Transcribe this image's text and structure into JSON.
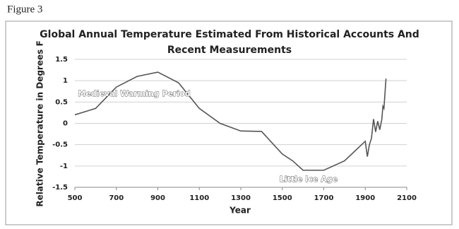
{
  "figure_label": "Figure 3",
  "chart_data": {
    "type": "line",
    "title": "Global Annual Temperature Estimated From Historical Accounts And Recent Measurements",
    "x_label": "Year",
    "y_label": "Relative Temperature in Degrees F",
    "annotations": [
      "Medieval Warming Period",
      "Little Ice Age"
    ],
    "x": [
      500,
      600,
      700,
      800,
      900,
      1000,
      1100,
      1200,
      1300,
      1400,
      1500,
      1550,
      1600,
      1700,
      1800,
      1900,
      1910,
      1920,
      1930,
      1940,
      1950,
      1960,
      1970,
      1980,
      1985,
      1990,
      2000
    ],
    "values": [
      0.2,
      0.35,
      0.85,
      1.1,
      1.2,
      0.95,
      0.35,
      0.0,
      -0.18,
      -0.19,
      -0.72,
      -0.88,
      -1.1,
      -1.1,
      -0.88,
      -0.42,
      -0.78,
      -0.5,
      -0.35,
      0.1,
      -0.2,
      0.05,
      -0.15,
      0.1,
      0.4,
      0.35,
      1.05
    ],
    "color": "#555555",
    "xlim": [
      500,
      2100
    ],
    "xticks": [
      500,
      700,
      900,
      1100,
      1300,
      1500,
      1700,
      1900,
      2100
    ],
    "ylim": [
      -1.5,
      1.5
    ],
    "yticks": [
      1.5,
      1,
      0.5,
      0,
      -0.5,
      -1,
      -1.5
    ],
    "grid": true
  }
}
